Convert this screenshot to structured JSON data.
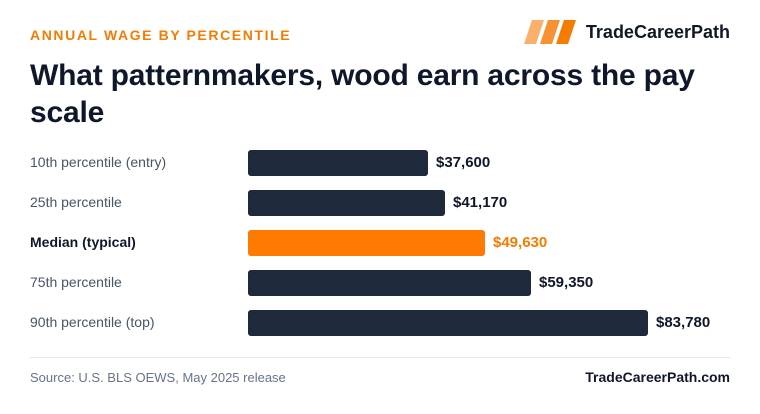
{
  "header": {
    "kicker": "ANNUAL WAGE BY PERCENTILE",
    "brand_name": "TradeCareerPath",
    "brand_colors": [
      "#f9b06b",
      "#f79233",
      "#f57c00"
    ],
    "title": "What patternmakers, wood earn across the pay scale"
  },
  "chart_data": {
    "type": "bar",
    "orientation": "horizontal",
    "categories": [
      "10th percentile (entry)",
      "25th percentile",
      "Median (typical)",
      "75th percentile",
      "90th percentile (top)"
    ],
    "values": [
      37600,
      41170,
      49630,
      59350,
      83780
    ],
    "value_labels": [
      "$37,600",
      "$41,170",
      "$49,630",
      "$59,350",
      "$83,780"
    ],
    "highlight_index": 2,
    "xlim": [
      0,
      83780
    ],
    "grid": false,
    "colors": {
      "bar": "#1e293b",
      "highlight": "#ff7a00",
      "highlight_text": "#f57c00"
    }
  },
  "footer": {
    "source": "Source: U.S. BLS OEWS, May 2025 release",
    "brand_url": "TradeCareerPath.com"
  }
}
